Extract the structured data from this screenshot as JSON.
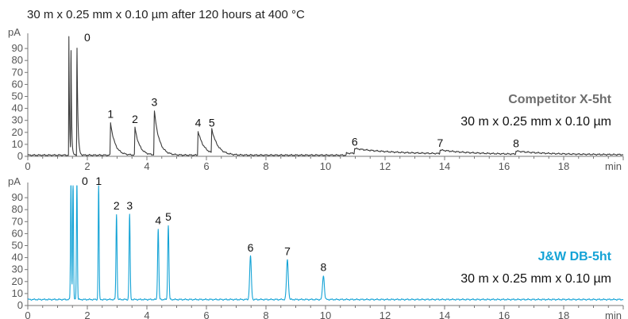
{
  "title": "30 m x 0.25 mm x 0.10 µm after 120 hours at 400 °C",
  "colors": {
    "top_trace": "#3a3a3a",
    "bottom_trace": "#14a3d6",
    "top_label": "#6d6d6d",
    "bottom_label": "#14a3d6",
    "axis": "#777777"
  },
  "chart_data": [
    {
      "type": "line",
      "name": "top-chromatogram",
      "series_label": "Competitor X-5ht",
      "column_label": "30 m x 0.25 mm x 0.10 µm",
      "ylabel": "pA",
      "xunit": "min",
      "xlim": [
        0,
        20
      ],
      "ylim": [
        0,
        100
      ],
      "xticks": [
        0,
        2,
        4,
        6,
        8,
        10,
        12,
        14,
        16,
        18
      ],
      "yticks": [
        0,
        10,
        20,
        30,
        40,
        50,
        60,
        70,
        80,
        90
      ],
      "grid": false,
      "baseline": 1,
      "peaks": [
        {
          "label": "",
          "rt": 1.38,
          "height": 100,
          "tail": 0.02
        },
        {
          "label": "",
          "rt": 1.45,
          "height": 100,
          "tail": 0.02
        },
        {
          "label": "0",
          "rt": 1.65,
          "height": 100,
          "tail": 0.03
        },
        {
          "label": "1",
          "rt": 2.78,
          "height": 27,
          "tail": 0.15
        },
        {
          "label": "2",
          "rt": 3.6,
          "height": 23,
          "tail": 0.15
        },
        {
          "label": "3",
          "rt": 4.25,
          "height": 37,
          "tail": 0.16
        },
        {
          "label": "4",
          "rt": 5.72,
          "height": 20,
          "tail": 0.2
        },
        {
          "label": "5",
          "rt": 6.18,
          "height": 20,
          "tail": 0.2
        },
        {
          "label": "6",
          "rt": 10.98,
          "height": 4,
          "tail": 1.2
        },
        {
          "label": "7",
          "rt": 13.85,
          "height": 3,
          "tail": 1.0
        },
        {
          "label": "8",
          "rt": 16.4,
          "height": 2.5,
          "tail": 1.0
        }
      ]
    },
    {
      "type": "line",
      "name": "bottom-chromatogram",
      "series_label": "J&W DB-5ht",
      "column_label": "30 m x 0.25 mm x 0.10 µm",
      "ylabel": "pA",
      "xunit": "min",
      "xlim": [
        0,
        20
      ],
      "ylim": [
        0,
        100
      ],
      "xticks": [
        0,
        2,
        4,
        6,
        8,
        10,
        12,
        14,
        16,
        18
      ],
      "yticks": [
        0,
        10,
        20,
        30,
        40,
        50,
        60,
        70,
        80,
        90
      ],
      "grid": false,
      "baseline": 5,
      "peaks": [
        {
          "label": "",
          "rt": 1.45,
          "height": 100,
          "width": 0.015
        },
        {
          "label": "",
          "rt": 1.52,
          "height": 100,
          "width": 0.015
        },
        {
          "label": "0",
          "rt": 1.65,
          "height": 100,
          "width": 0.015
        },
        {
          "label": "1",
          "rt": 2.38,
          "height": 97,
          "width": 0.015
        },
        {
          "label": "2",
          "rt": 2.98,
          "height": 71,
          "width": 0.018
        },
        {
          "label": "3",
          "rt": 3.42,
          "height": 71,
          "width": 0.018
        },
        {
          "label": "4",
          "rt": 4.38,
          "height": 59,
          "width": 0.02
        },
        {
          "label": "5",
          "rt": 4.72,
          "height": 62,
          "width": 0.02
        },
        {
          "label": "6",
          "rt": 7.48,
          "height": 36,
          "width": 0.028
        },
        {
          "label": "7",
          "rt": 8.72,
          "height": 33,
          "width": 0.03
        },
        {
          "label": "8",
          "rt": 9.93,
          "height": 20,
          "width": 0.03
        }
      ]
    }
  ]
}
